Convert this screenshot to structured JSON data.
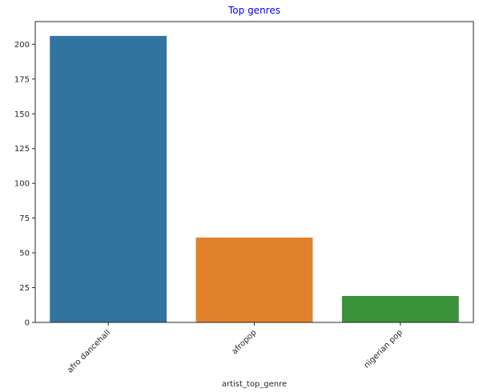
{
  "chart_data": {
    "type": "bar",
    "title": "Top genres",
    "title_color": "#0000ff",
    "xlabel": "artist_top_genre",
    "ylabel": "",
    "categories": [
      "afro dancehall",
      "afropop",
      "nigerian pop"
    ],
    "values": [
      206,
      61,
      19
    ],
    "colors": [
      "#3274a1",
      "#e1812c",
      "#3a923a"
    ],
    "ylim": [
      0,
      216.3
    ],
    "yticks": [
      0,
      25,
      50,
      75,
      100,
      125,
      150,
      175,
      200
    ],
    "xtick_rotation": 45,
    "grid": false,
    "legend": "none"
  }
}
